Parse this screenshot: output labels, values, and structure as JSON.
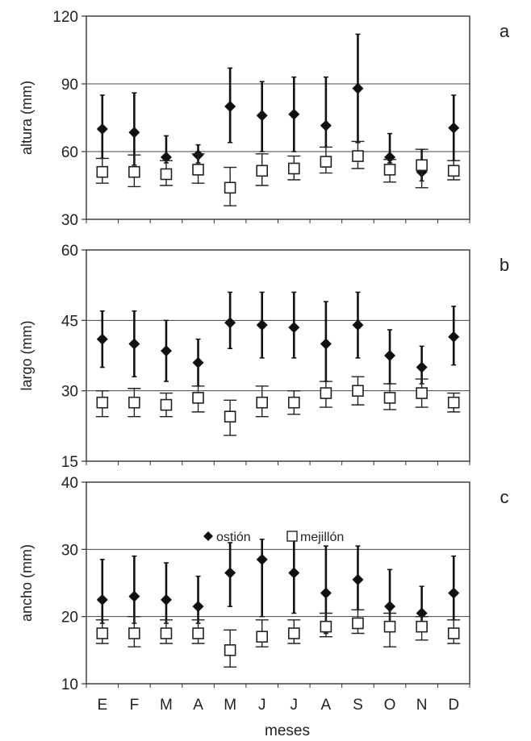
{
  "chart_data": [
    {
      "type": "scatter",
      "panel_label": "a",
      "ylabel": "altura (mm)",
      "ylim": [
        30,
        120
      ],
      "yticks": [
        "30",
        "60",
        "90",
        "120"
      ],
      "gridlines": [
        60,
        90
      ],
      "categories": [
        "E",
        "F",
        "M",
        "A",
        "M",
        "J",
        "J",
        "A",
        "S",
        "O",
        "N",
        "D"
      ],
      "series": [
        {
          "name": "ostión",
          "values": [
            70,
            68.5,
            57.5,
            58.5,
            80,
            76,
            76.5,
            71.5,
            88,
            57.5,
            51,
            70.5
          ],
          "lower": [
            57,
            54,
            55,
            55,
            64,
            60,
            60,
            62,
            64,
            55,
            47,
            56
          ],
          "upper": [
            85,
            86,
            67,
            63,
            97,
            91,
            93,
            93,
            112,
            68,
            61,
            85
          ]
        },
        {
          "name": "mejillón",
          "values": [
            51,
            51,
            50,
            52,
            44,
            51.5,
            52.5,
            55.5,
            58,
            52,
            54,
            51.5
          ],
          "lower": [
            46,
            44.5,
            45,
            46,
            36,
            45,
            47.5,
            50.5,
            52.5,
            46.5,
            44,
            47.5
          ],
          "upper": [
            57,
            58.5,
            56,
            59,
            53,
            59,
            58,
            62,
            64.5,
            56.5,
            61,
            56
          ]
        }
      ]
    },
    {
      "type": "scatter",
      "panel_label": "b",
      "ylabel": "largo (mm)",
      "ylim": [
        15,
        60
      ],
      "yticks": [
        "15",
        "30",
        "45",
        "60"
      ],
      "gridlines": [
        30,
        45
      ],
      "categories": [
        "E",
        "F",
        "M",
        "A",
        "M",
        "J",
        "J",
        "A",
        "S",
        "O",
        "N",
        "D"
      ],
      "series": [
        {
          "name": "ostión",
          "values": [
            41,
            40,
            38.5,
            36,
            44.5,
            44,
            43.5,
            40,
            44,
            37.5,
            35,
            41.5
          ],
          "lower": [
            35,
            33,
            32,
            31,
            39,
            37,
            37,
            32,
            37,
            31.5,
            31.5,
            35.5
          ],
          "upper": [
            47,
            47,
            45,
            41,
            51,
            51,
            51,
            49,
            51,
            43,
            39.5,
            48
          ]
        },
        {
          "name": "mejillón",
          "values": [
            27.5,
            27.5,
            27,
            28.5,
            24.5,
            27.5,
            27.5,
            29.5,
            30,
            28.5,
            29.5,
            27.5
          ],
          "lower": [
            24.5,
            24.5,
            24.5,
            25.5,
            20.5,
            24.5,
            25,
            26.5,
            27,
            26,
            26.5,
            25.5
          ],
          "upper": [
            30,
            30.5,
            29.5,
            31,
            28,
            31,
            30,
            32,
            33,
            31.5,
            32.5,
            29.5
          ]
        }
      ]
    },
    {
      "type": "scatter",
      "panel_label": "c",
      "ylabel": "ancho (mm)",
      "xlabel": "meses",
      "ylim": [
        10,
        40
      ],
      "yticks": [
        "10",
        "20",
        "30",
        "40"
      ],
      "gridlines": [
        20,
        30
      ],
      "categories": [
        "E",
        "F",
        "M",
        "A",
        "M",
        "J",
        "J",
        "A",
        "S",
        "O",
        "N",
        "D"
      ],
      "legend": [
        "ostión",
        "mejillón"
      ],
      "series": [
        {
          "name": "ostión",
          "values": [
            22.5,
            23,
            22.5,
            21.5,
            26.5,
            28.5,
            26.5,
            23.5,
            25.5,
            21.5,
            20.5,
            23.5
          ],
          "lower": [
            19,
            19,
            19,
            19,
            21.5,
            20,
            20.5,
            17.5,
            21,
            18.5,
            18,
            19.5
          ],
          "upper": [
            28.5,
            29,
            28,
            26,
            31,
            31.5,
            31.5,
            30.5,
            30.5,
            27,
            24.5,
            29
          ]
        },
        {
          "name": "mejillón",
          "values": [
            17.5,
            17.5,
            17.5,
            17.5,
            15,
            17,
            17.5,
            18.5,
            19,
            18.5,
            18.5,
            17.5
          ],
          "lower": [
            16,
            15.5,
            16,
            16,
            12.5,
            15.5,
            16,
            17,
            17.5,
            15.5,
            16.5,
            16
          ],
          "upper": [
            19.5,
            20,
            19.5,
            19.5,
            18,
            19.5,
            19.5,
            20.5,
            21,
            20.5,
            20,
            19.5
          ]
        }
      ]
    }
  ]
}
